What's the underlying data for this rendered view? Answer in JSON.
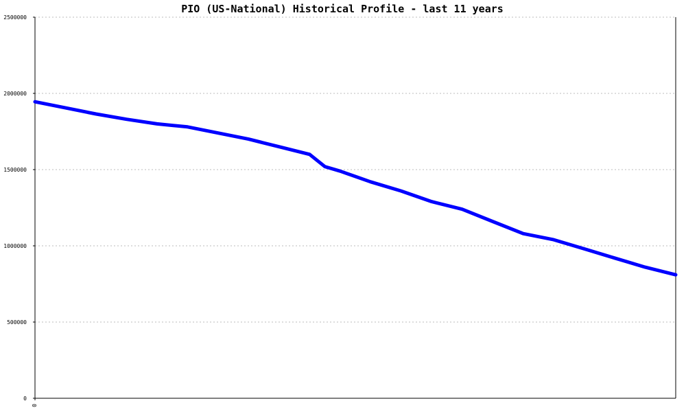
{
  "chart_data": {
    "type": "line",
    "title": "PIO (US-National) Historical Profile - last 11 years",
    "xlabel": "",
    "ylabel": "",
    "ylim": [
      0,
      2500000
    ],
    "yticks": [
      0,
      500000,
      1000000,
      1500000,
      2000000,
      2500000
    ],
    "ytick_labels": [
      "0",
      "500000",
      "1000000",
      "1500000",
      "2000000",
      "2500000"
    ],
    "xticks": [
      0
    ],
    "xtick_labels": [
      "0"
    ],
    "xlim": [
      0,
      21
    ],
    "grid": true,
    "series": [
      {
        "color": "#0000ff",
        "x": [
          0,
          1,
          2,
          3,
          4,
          5,
          6,
          7,
          8,
          9,
          9.5,
          10,
          11,
          12,
          13,
          14,
          15,
          16,
          17,
          18,
          19,
          20,
          21
        ],
        "y": [
          1945000,
          1905000,
          1865000,
          1830000,
          1800000,
          1780000,
          1740000,
          1700000,
          1650000,
          1600000,
          1520000,
          1490000,
          1420000,
          1360000,
          1290000,
          1240000,
          1160000,
          1080000,
          1040000,
          980000,
          920000,
          860000,
          810000
        ]
      }
    ]
  }
}
